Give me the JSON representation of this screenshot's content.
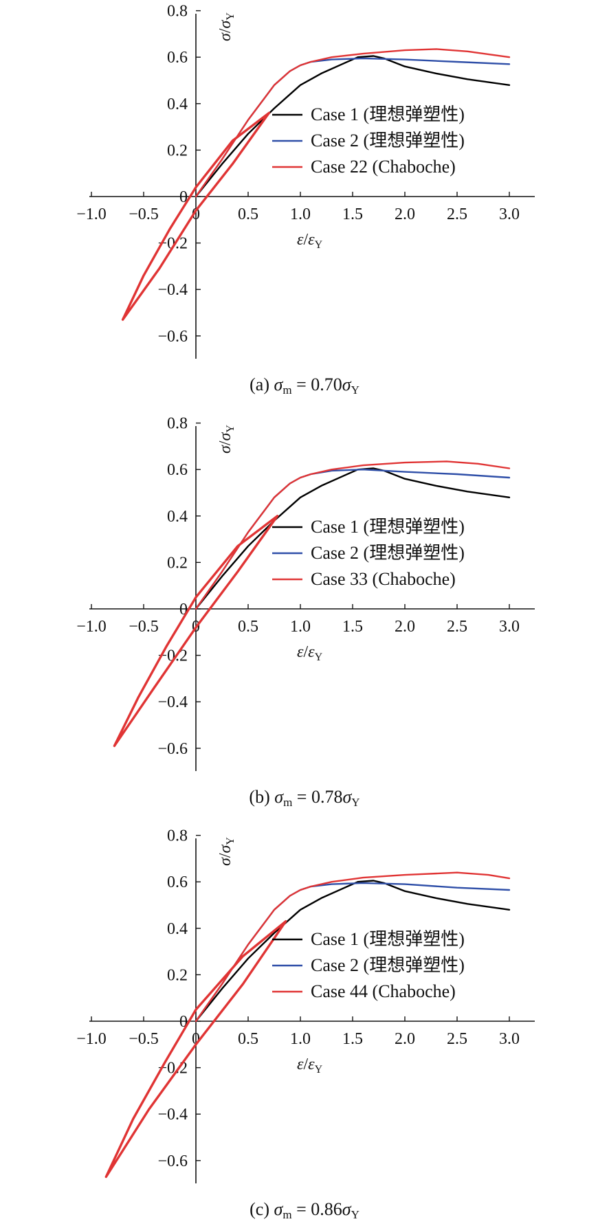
{
  "chart_data": [
    {
      "type": "line",
      "caption": {
        "prefix": "(a)",
        "lhs_sym": "σ",
        "lhs_sub": "m",
        "eq": " = 0.70",
        "rhs_sym": "σ",
        "rhs_sub": "Y"
      },
      "xlabel": {
        "a": "ε",
        "b": "ε",
        "sub": "Y"
      },
      "ylabel": {
        "a": "σ",
        "b": "σ",
        "sub": "Y"
      },
      "xlim": [
        -1.0,
        3.0
      ],
      "ylim": [
        -0.7,
        0.8
      ],
      "xticks": [
        -1.0,
        -0.5,
        0,
        0.5,
        1.0,
        1.5,
        2.0,
        2.5,
        3.0
      ],
      "yticks": [
        -0.6,
        -0.4,
        -0.2,
        0,
        0.2,
        0.4,
        0.6,
        0.8
      ],
      "xtick_labels": [
        "−1.0",
        "−0.5",
        "0",
        "0.5",
        "1.0",
        "1.5",
        "2.0",
        "2.5",
        "3.0"
      ],
      "ytick_labels": [
        "−0.6",
        "−0.4",
        "−0.2",
        "0",
        "0.2",
        "0.4",
        "0.6",
        "0.8"
      ],
      "legend_position": "center-right",
      "series": [
        {
          "name": "Case 1 (理想弹塑性)",
          "color": "#000000",
          "points": [
            [
              0,
              0
            ],
            [
              0.25,
              0.14
            ],
            [
              0.5,
              0.27
            ],
            [
              0.75,
              0.38
            ],
            [
              0.9,
              0.44
            ],
            [
              1.0,
              0.48
            ],
            [
              1.2,
              0.53
            ],
            [
              1.4,
              0.57
            ],
            [
              1.55,
              0.6
            ],
            [
              1.7,
              0.605
            ],
            [
              1.8,
              0.595
            ],
            [
              2.0,
              0.56
            ],
            [
              2.3,
              0.53
            ],
            [
              2.6,
              0.505
            ],
            [
              3.0,
              0.48
            ]
          ]
        },
        {
          "name": "Case 2 (理想弹塑性)",
          "color": "#2f4fa8",
          "points": [
            [
              0,
              0
            ],
            [
              0.25,
              0.16
            ],
            [
              0.5,
              0.33
            ],
            [
              0.75,
              0.48
            ],
            [
              0.9,
              0.54
            ],
            [
              1.0,
              0.565
            ],
            [
              1.1,
              0.58
            ],
            [
              1.3,
              0.59
            ],
            [
              1.6,
              0.595
            ],
            [
              2.0,
              0.59
            ],
            [
              2.5,
              0.58
            ],
            [
              3.0,
              0.57
            ]
          ]
        },
        {
          "name": "Case 22 (Chaboche)",
          "color": "#e03434",
          "points": [
            [
              0,
              0
            ],
            [
              0.25,
              0.16
            ],
            [
              0.5,
              0.33
            ],
            [
              0.75,
              0.48
            ],
            [
              0.9,
              0.54
            ],
            [
              1.0,
              0.565
            ],
            [
              1.1,
              0.58
            ],
            [
              1.3,
              0.6
            ],
            [
              1.6,
              0.615
            ],
            [
              2.0,
              0.63
            ],
            [
              2.3,
              0.635
            ],
            [
              2.6,
              0.625
            ],
            [
              3.0,
              0.6
            ]
          ]
        },
        {
          "name": "loop",
          "color": "#e03434",
          "points": [
            [
              0.7,
              0.36
            ],
            [
              0.35,
              0.14
            ],
            [
              0.0,
              -0.06
            ],
            [
              -0.35,
              -0.31
            ],
            [
              -0.7,
              -0.53
            ],
            [
              -0.5,
              -0.34
            ],
            [
              -0.25,
              -0.14
            ],
            [
              0.0,
              0.04
            ],
            [
              0.35,
              0.24
            ],
            [
              0.7,
              0.36
            ]
          ]
        }
      ]
    },
    {
      "type": "line",
      "caption": {
        "prefix": "(b)",
        "lhs_sym": "σ",
        "lhs_sub": "m",
        "eq": " = 0.78",
        "rhs_sym": "σ",
        "rhs_sub": "Y"
      },
      "xlabel": {
        "a": "ε",
        "b": "ε",
        "sub": "Y"
      },
      "ylabel": {
        "a": "σ",
        "b": "σ",
        "sub": "Y"
      },
      "xlim": [
        -1.0,
        3.0
      ],
      "ylim": [
        -0.7,
        0.8
      ],
      "xticks": [
        -1.0,
        -0.5,
        0,
        0.5,
        1.0,
        1.5,
        2.0,
        2.5,
        3.0
      ],
      "yticks": [
        -0.6,
        -0.4,
        -0.2,
        0,
        0.2,
        0.4,
        0.6,
        0.8
      ],
      "xtick_labels": [
        "−1.0",
        "−0.5",
        "0",
        "0.5",
        "1.0",
        "1.5",
        "2.0",
        "2.5",
        "3.0"
      ],
      "ytick_labels": [
        "−0.6",
        "−0.4",
        "−0.2",
        "0",
        "0.2",
        "0.4",
        "0.6",
        "0.8"
      ],
      "legend_position": "center-right",
      "series": [
        {
          "name": "Case 1 (理想弹塑性)",
          "color": "#000000",
          "points": [
            [
              0,
              0
            ],
            [
              0.25,
              0.14
            ],
            [
              0.5,
              0.27
            ],
            [
              0.75,
              0.38
            ],
            [
              0.9,
              0.44
            ],
            [
              1.0,
              0.48
            ],
            [
              1.2,
              0.53
            ],
            [
              1.4,
              0.57
            ],
            [
              1.55,
              0.6
            ],
            [
              1.7,
              0.605
            ],
            [
              1.8,
              0.595
            ],
            [
              2.0,
              0.56
            ],
            [
              2.3,
              0.53
            ],
            [
              2.6,
              0.505
            ],
            [
              3.0,
              0.48
            ]
          ]
        },
        {
          "name": "Case 2 (理想弹塑性)",
          "color": "#2f4fa8",
          "points": [
            [
              0,
              0
            ],
            [
              0.25,
              0.16
            ],
            [
              0.5,
              0.33
            ],
            [
              0.75,
              0.48
            ],
            [
              0.9,
              0.54
            ],
            [
              1.0,
              0.565
            ],
            [
              1.1,
              0.58
            ],
            [
              1.3,
              0.595
            ],
            [
              1.6,
              0.6
            ],
            [
              2.0,
              0.59
            ],
            [
              2.5,
              0.58
            ],
            [
              3.0,
              0.565
            ]
          ]
        },
        {
          "name": "Case 33 (Chaboche)",
          "color": "#e03434",
          "points": [
            [
              0,
              0
            ],
            [
              0.25,
              0.16
            ],
            [
              0.5,
              0.33
            ],
            [
              0.75,
              0.48
            ],
            [
              0.9,
              0.54
            ],
            [
              1.0,
              0.565
            ],
            [
              1.1,
              0.58
            ],
            [
              1.3,
              0.6
            ],
            [
              1.6,
              0.618
            ],
            [
              2.0,
              0.63
            ],
            [
              2.4,
              0.635
            ],
            [
              2.7,
              0.625
            ],
            [
              3.0,
              0.605
            ]
          ]
        },
        {
          "name": "loop",
          "color": "#e03434",
          "points": [
            [
              0.78,
              0.4
            ],
            [
              0.4,
              0.16
            ],
            [
              0.0,
              -0.08
            ],
            [
              -0.4,
              -0.34
            ],
            [
              -0.78,
              -0.59
            ],
            [
              -0.55,
              -0.38
            ],
            [
              -0.28,
              -0.16
            ],
            [
              0.0,
              0.05
            ],
            [
              0.4,
              0.27
            ],
            [
              0.78,
              0.4
            ]
          ]
        }
      ]
    },
    {
      "type": "line",
      "caption": {
        "prefix": "(c)",
        "lhs_sym": "σ",
        "lhs_sub": "m",
        "eq": " = 0.86",
        "rhs_sym": "σ",
        "rhs_sub": "Y"
      },
      "xlabel": {
        "a": "ε",
        "b": "ε",
        "sub": "Y"
      },
      "ylabel": {
        "a": "σ",
        "b": "σ",
        "sub": "Y"
      },
      "xlim": [
        -1.0,
        3.0
      ],
      "ylim": [
        -0.7,
        0.8
      ],
      "xticks": [
        -1.0,
        -0.5,
        0,
        0.5,
        1.0,
        1.5,
        2.0,
        2.5,
        3.0
      ],
      "yticks": [
        -0.6,
        -0.4,
        -0.2,
        0,
        0.2,
        0.4,
        0.6,
        0.8
      ],
      "xtick_labels": [
        "−1.0",
        "−0.5",
        "0",
        "0.5",
        "1.0",
        "1.5",
        "2.0",
        "2.5",
        "3.0"
      ],
      "ytick_labels": [
        "−0.6",
        "−0.4",
        "−0.2",
        "0",
        "0.2",
        "0.4",
        "0.6",
        "0.8"
      ],
      "legend_position": "center-right",
      "series": [
        {
          "name": "Case 1 (理想弹塑性)",
          "color": "#000000",
          "points": [
            [
              0,
              0
            ],
            [
              0.25,
              0.14
            ],
            [
              0.5,
              0.27
            ],
            [
              0.75,
              0.38
            ],
            [
              0.9,
              0.44
            ],
            [
              1.0,
              0.48
            ],
            [
              1.2,
              0.53
            ],
            [
              1.4,
              0.57
            ],
            [
              1.55,
              0.6
            ],
            [
              1.7,
              0.605
            ],
            [
              1.8,
              0.595
            ],
            [
              2.0,
              0.56
            ],
            [
              2.3,
              0.53
            ],
            [
              2.6,
              0.505
            ],
            [
              3.0,
              0.48
            ]
          ]
        },
        {
          "name": "Case 2 (理想弹塑性)",
          "color": "#2f4fa8",
          "points": [
            [
              0,
              0
            ],
            [
              0.25,
              0.16
            ],
            [
              0.5,
              0.33
            ],
            [
              0.75,
              0.48
            ],
            [
              0.9,
              0.54
            ],
            [
              1.0,
              0.565
            ],
            [
              1.1,
              0.58
            ],
            [
              1.3,
              0.59
            ],
            [
              1.6,
              0.595
            ],
            [
              2.0,
              0.59
            ],
            [
              2.5,
              0.575
            ],
            [
              3.0,
              0.565
            ]
          ]
        },
        {
          "name": "Case 44 (Chaboche)",
          "color": "#e03434",
          "points": [
            [
              0,
              0
            ],
            [
              0.25,
              0.16
            ],
            [
              0.5,
              0.33
            ],
            [
              0.75,
              0.48
            ],
            [
              0.9,
              0.54
            ],
            [
              1.0,
              0.565
            ],
            [
              1.1,
              0.58
            ],
            [
              1.3,
              0.6
            ],
            [
              1.6,
              0.618
            ],
            [
              2.0,
              0.63
            ],
            [
              2.5,
              0.64
            ],
            [
              2.8,
              0.63
            ],
            [
              3.0,
              0.615
            ]
          ]
        },
        {
          "name": "loop",
          "color": "#e03434",
          "points": [
            [
              0.86,
              0.43
            ],
            [
              0.45,
              0.16
            ],
            [
              0.0,
              -0.1
            ],
            [
              -0.45,
              -0.38
            ],
            [
              -0.86,
              -0.67
            ],
            [
              -0.6,
              -0.42
            ],
            [
              -0.3,
              -0.18
            ],
            [
              0.0,
              0.05
            ],
            [
              0.45,
              0.28
            ],
            [
              0.86,
              0.43
            ]
          ]
        }
      ]
    }
  ]
}
